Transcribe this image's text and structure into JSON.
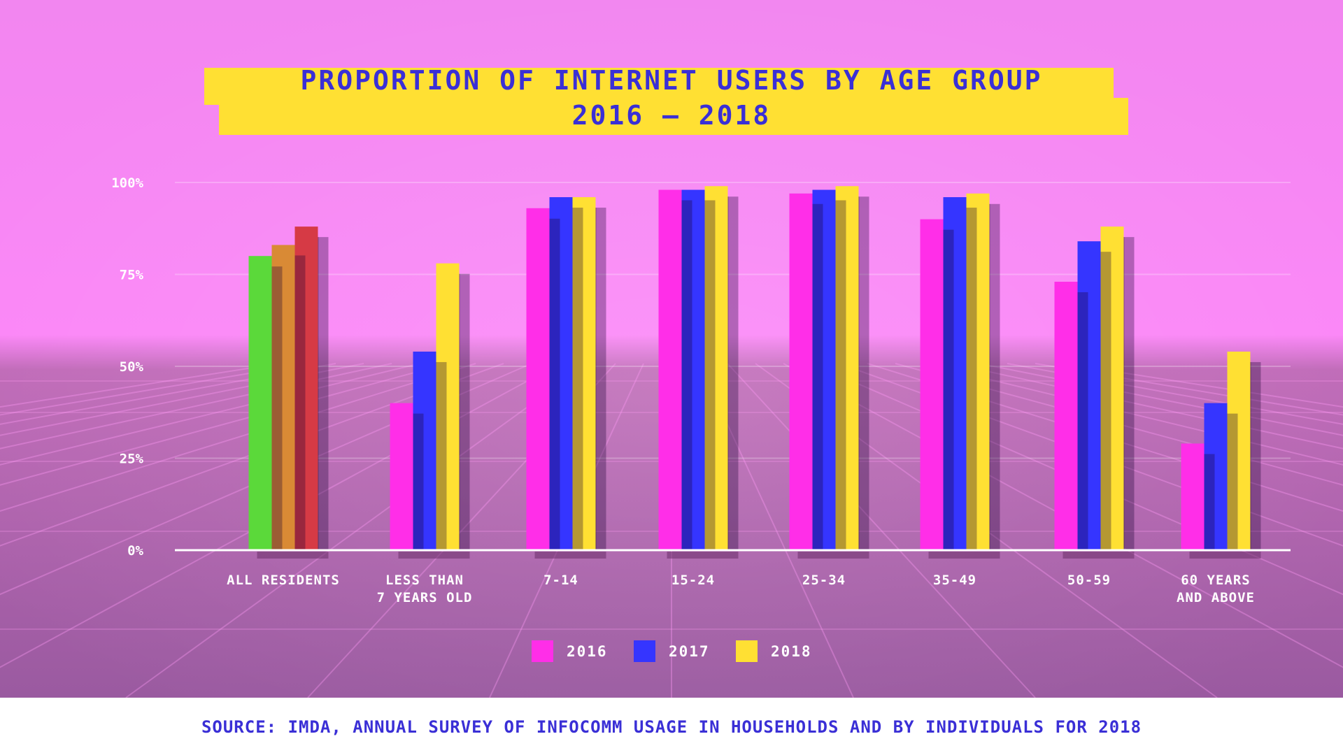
{
  "chart_data": {
    "type": "bar",
    "title": "PROPORTION OF INTERNET USERS BY AGE GROUP",
    "subtitle": "2016 – 2018",
    "categories": [
      [
        "ALL RESIDENTS"
      ],
      [
        "LESS THAN",
        "7 YEARS OLD"
      ],
      [
        "7-14"
      ],
      [
        "15-24"
      ],
      [
        "25-34"
      ],
      [
        "35-49"
      ],
      [
        "50-59"
      ],
      [
        "60 YEARS",
        "AND ABOVE"
      ]
    ],
    "series": [
      {
        "name": "2016",
        "color": "#ff2ee8",
        "values": [
          80,
          40,
          93,
          98,
          97,
          90,
          73,
          29
        ]
      },
      {
        "name": "2017",
        "color": "#3535ff",
        "values": [
          83,
          54,
          96,
          98,
          98,
          96,
          84,
          40
        ]
      },
      {
        "name": "2018",
        "color": "#ffe033",
        "values": [
          88,
          78,
          96,
          99,
          99,
          97,
          88,
          54
        ]
      }
    ],
    "all_residents_colors": [
      "#5bd93a",
      "#d98a35",
      "#d63a45"
    ],
    "y_ticks": [
      "0%",
      "25%",
      "50%",
      "75%",
      "100%"
    ],
    "ylim": [
      0,
      100
    ],
    "grid": true,
    "legend_position": "bottom-center"
  },
  "source": "SOURCE: IMDA, ANNUAL SURVEY OF INFOCOMM USAGE IN HOUSEHOLDS AND BY INDIVIDUALS FOR 2018"
}
